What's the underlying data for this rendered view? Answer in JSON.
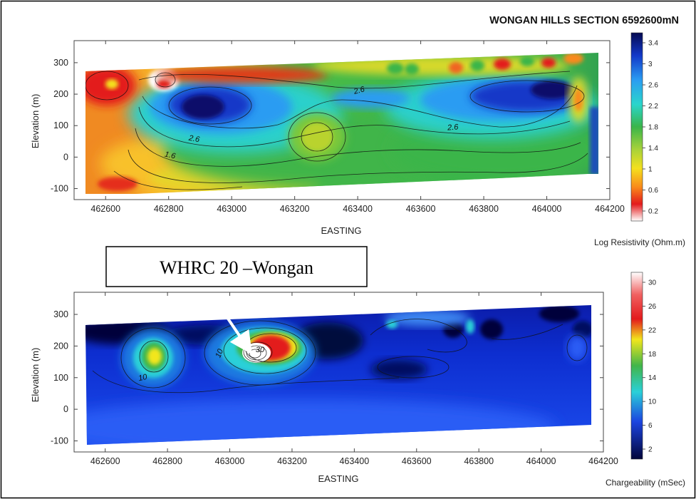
{
  "title": "WONGAN HILLS SECTION 6592600mN",
  "annotation": "WHRC 20 –Wongan",
  "chart_data": [
    {
      "type": "heatmap",
      "name": "resistivity",
      "xlabel": "EASTING",
      "ylabel": "Elevation (m)",
      "x_ticks": [
        462600,
        462800,
        463000,
        463200,
        463400,
        463600,
        463800,
        464000,
        464200
      ],
      "y_ticks": [
        -100,
        0,
        100,
        200,
        300
      ],
      "xlim": [
        462500,
        464200
      ],
      "ylim": [
        -135,
        370
      ],
      "colorbar": {
        "label": "Log Resistivity (Ohm.m)",
        "ticks": [
          "3.4",
          "3",
          "2.6",
          "2.2",
          "1.8",
          "1.4",
          "1",
          "0.6",
          "0.2"
        ]
      },
      "contour_labels": [
        "2.6",
        "2.6",
        "2.6",
        "1.6"
      ],
      "colors": {
        "white": "#ffffff",
        "red": "#e31a1c",
        "orange": "#f98a1a",
        "yellow": "#f4e01e",
        "green": "#3ab54a",
        "cyan": "#2ad0d8",
        "blue": "#1f5ed8",
        "navy": "#06084c"
      }
    },
    {
      "type": "heatmap",
      "name": "chargeability",
      "xlabel": "EASTING",
      "ylabel": "Elevation (m)",
      "x_ticks": [
        462600,
        462800,
        463000,
        463200,
        463400,
        463600,
        463800,
        464000,
        464200
      ],
      "y_ticks": [
        -100,
        0,
        100,
        200,
        300
      ],
      "xlim": [
        462500,
        464200
      ],
      "ylim": [
        -135,
        370
      ],
      "colorbar": {
        "label": "Chargeability (mSec)",
        "ticks": [
          "30",
          "26",
          "22",
          "18",
          "14",
          "10",
          "6",
          "2"
        ]
      },
      "contour_labels": [
        "10",
        "10",
        "30"
      ],
      "colors": {
        "white": "#ffffff",
        "red": "#e31a1c",
        "yellow": "#f2e61c",
        "green": "#41b54a",
        "cyan": "#2ad0d8",
        "blue": "#1c44e0",
        "navy": "#02053a"
      }
    }
  ]
}
